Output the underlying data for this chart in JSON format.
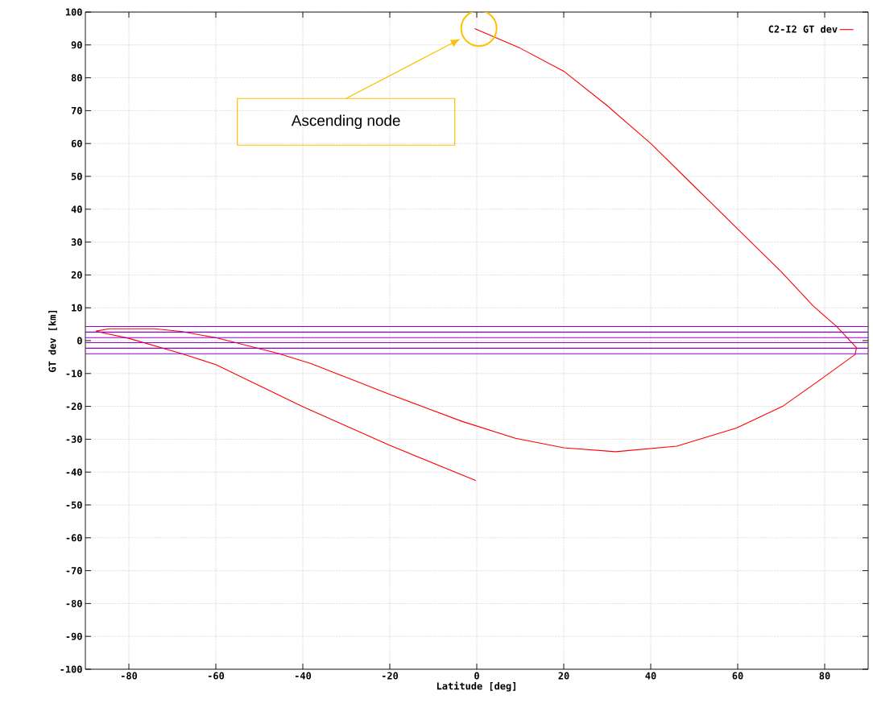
{
  "chart_data": {
    "type": "line",
    "xlabel": "Latitude [deg]",
    "ylabel": "GT dev [km]",
    "xlim": [
      -90,
      90
    ],
    "ylim": [
      -100,
      100
    ],
    "xticks": [
      -80,
      -60,
      -40,
      -20,
      0,
      20,
      40,
      60,
      80
    ],
    "yticks": [
      -100,
      -90,
      -80,
      -70,
      -60,
      -50,
      -40,
      -30,
      -20,
      -10,
      0,
      10,
      20,
      30,
      40,
      50,
      60,
      70,
      80,
      90,
      100
    ],
    "grid": true,
    "legend": "top right",
    "marker": "none",
    "line_style": "solid",
    "series": [
      {
        "name": "C2-I2 GT dev",
        "color": "#ff0000",
        "x": [
          -0.5,
          10,
          20,
          30,
          40,
          50,
          60,
          70,
          77.4,
          82.7,
          87.3,
          87.0,
          79.4,
          70.3,
          59.7,
          46,
          32,
          20,
          8.9,
          -3.3,
          -20.1,
          -38.1,
          -45.9,
          -60,
          -68.1,
          -74.1,
          -84.5,
          -87.5,
          -86,
          -80,
          -67.8,
          -60,
          -40,
          -20.1,
          -0.2
        ],
        "values": [
          95,
          89,
          82,
          71.5,
          60,
          47,
          34,
          21,
          10.5,
          4.4,
          -2.1,
          -4.2,
          -11.5,
          -20,
          -26.6,
          -32.1,
          -33.8,
          -32.6,
          -29.7,
          -24.6,
          -16.3,
          -7.0,
          -3.8,
          0.9,
          2.8,
          3.6,
          3.6,
          2.9,
          2.4,
          0.7,
          -4.0,
          -7.3,
          -20.1,
          -31.8,
          -42.6
        ]
      }
    ],
    "ref_lines": [
      {
        "axis": "y",
        "value": 4.3,
        "color": "#9400d3"
      },
      {
        "axis": "y",
        "value": 2.6,
        "color": "#9400d3"
      },
      {
        "axis": "y",
        "value": 0.9,
        "color": "#9400d3"
      },
      {
        "axis": "y",
        "value": -0.6,
        "color": "#9400d3"
      },
      {
        "axis": "y",
        "value": -2.3,
        "color": "#9400d3"
      },
      {
        "axis": "y",
        "value": -4.0,
        "color": "#9400d3"
      }
    ],
    "annotations": [
      "Ascending node"
    ]
  }
}
